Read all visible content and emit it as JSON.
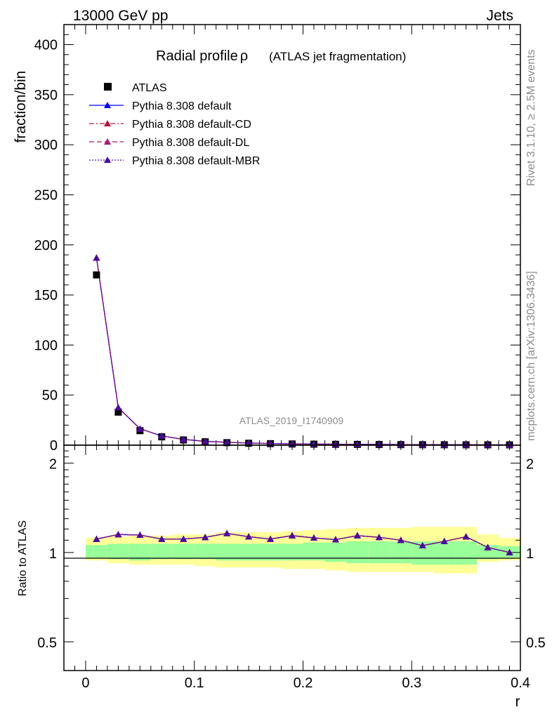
{
  "header": {
    "left": "13000 GeV pp",
    "right": "Jets"
  },
  "side": {
    "rivet": "Rivet 3.1.10, ≥ 2.5M events",
    "mcplots": "mcplots.cern.ch [arXiv:1306.3436]"
  },
  "watermark": "ATLAS_2019_I1740909",
  "chart_data": [
    {
      "type": "scatter",
      "title": "Radial profile",
      "title_symbol": "ρ",
      "subtitle": "(ATLAS jet fragmentation)",
      "ylabel": "fraction/bin",
      "xlim": [
        -0.02,
        0.4
      ],
      "ylim": [
        0,
        420
      ],
      "y_ticks": [
        0,
        50,
        100,
        150,
        200,
        250,
        300,
        350,
        400
      ],
      "x": [
        0.01,
        0.03,
        0.05,
        0.07,
        0.09,
        0.11,
        0.13,
        0.15,
        0.17,
        0.19,
        0.21,
        0.23,
        0.25,
        0.27,
        0.29,
        0.31,
        0.33,
        0.35,
        0.37,
        0.39
      ],
      "series": [
        {
          "name": "ATLAS",
          "color": "#000000",
          "marker": "square",
          "values": [
            170,
            33,
            14.5,
            8.3,
            5.2,
            3.4,
            2.5,
            1.9,
            1.5,
            1.2,
            1.0,
            0.85,
            0.75,
            0.65,
            0.55,
            0.47,
            0.42,
            0.37,
            0.33,
            0.3
          ]
        },
        {
          "name": "Pythia 8.308 default",
          "color": "#0000ff",
          "marker": "triangle",
          "dash": "solid",
          "values": [
            187,
            37.5,
            16.4,
            9.2,
            5.8,
            3.8,
            2.9,
            2.15,
            1.68,
            1.37,
            1.12,
            0.95,
            0.86,
            0.74,
            0.62,
            0.52,
            0.47,
            0.43,
            0.35,
            0.3
          ]
        },
        {
          "name": "Pythia 8.308 default-CD",
          "color": "#b0143c",
          "marker": "triangle",
          "dash": "dashdot",
          "values": [
            187,
            37.5,
            16.4,
            9.2,
            5.8,
            3.8,
            2.9,
            2.15,
            1.68,
            1.37,
            1.12,
            0.95,
            0.86,
            0.74,
            0.62,
            0.52,
            0.47,
            0.43,
            0.35,
            0.3
          ]
        },
        {
          "name": "Pythia 8.308 default-DL",
          "color": "#b0146e",
          "marker": "triangle",
          "dash": "dashed",
          "values": [
            187,
            37.5,
            16.4,
            9.2,
            5.8,
            3.8,
            2.9,
            2.15,
            1.68,
            1.37,
            1.12,
            0.95,
            0.86,
            0.74,
            0.62,
            0.52,
            0.47,
            0.43,
            0.35,
            0.3
          ]
        },
        {
          "name": "Pythia 8.308 default-MBR",
          "color": "#4b0aa0",
          "marker": "triangle",
          "dash": "dotted",
          "values": [
            187,
            37.5,
            16.4,
            9.2,
            5.8,
            3.8,
            2.9,
            2.15,
            1.68,
            1.37,
            1.12,
            0.95,
            0.86,
            0.74,
            0.62,
            0.52,
            0.47,
            0.43,
            0.35,
            0.3
          ]
        }
      ]
    },
    {
      "type": "scatter",
      "ylabel": "Ratio to ATLAS",
      "xlabel": "r",
      "log_y": true,
      "xlim": [
        -0.02,
        0.4
      ],
      "ylim": [
        0.4,
        2.3
      ],
      "y_ticks": [
        0.5,
        1,
        2
      ],
      "x_ticks": [
        0,
        0.1,
        0.2,
        0.3,
        0.4
      ],
      "x": [
        0.01,
        0.03,
        0.05,
        0.07,
        0.09,
        0.11,
        0.13,
        0.15,
        0.17,
        0.19,
        0.21,
        0.23,
        0.25,
        0.27,
        0.29,
        0.31,
        0.33,
        0.35,
        0.37,
        0.39
      ],
      "band_inner": [
        [
          0.96,
          1.06
        ],
        [
          0.95,
          1.07
        ],
        [
          0.94,
          1.07
        ],
        [
          0.95,
          1.07
        ],
        [
          0.95,
          1.07
        ],
        [
          0.95,
          1.07
        ],
        [
          0.94,
          1.07
        ],
        [
          0.94,
          1.07
        ],
        [
          0.94,
          1.07
        ],
        [
          0.94,
          1.07
        ],
        [
          0.94,
          1.08
        ],
        [
          0.93,
          1.08
        ],
        [
          0.92,
          1.09
        ],
        [
          0.92,
          1.09
        ],
        [
          0.92,
          1.09
        ],
        [
          0.91,
          1.09
        ],
        [
          0.91,
          1.09
        ],
        [
          0.91,
          1.09
        ],
        [
          0.95,
          1.06
        ],
        [
          0.96,
          1.05
        ]
      ],
      "band_outer": [
        [
          0.94,
          1.12
        ],
        [
          0.92,
          1.13
        ],
        [
          0.91,
          1.14
        ],
        [
          0.91,
          1.14
        ],
        [
          0.91,
          1.15
        ],
        [
          0.9,
          1.15
        ],
        [
          0.89,
          1.17
        ],
        [
          0.89,
          1.17
        ],
        [
          0.89,
          1.17
        ],
        [
          0.88,
          1.18
        ],
        [
          0.88,
          1.19
        ],
        [
          0.87,
          1.2
        ],
        [
          0.86,
          1.21
        ],
        [
          0.86,
          1.21
        ],
        [
          0.86,
          1.21
        ],
        [
          0.86,
          1.22
        ],
        [
          0.85,
          1.22
        ],
        [
          0.85,
          1.22
        ],
        [
          0.93,
          1.15
        ],
        [
          0.94,
          1.12
        ]
      ],
      "series": [
        {
          "name": "Pythia 8.308 default",
          "color": "#0000ff",
          "values": [
            1.11,
            1.15,
            1.145,
            1.11,
            1.11,
            1.125,
            1.16,
            1.13,
            1.11,
            1.14,
            1.12,
            1.105,
            1.14,
            1.125,
            1.1,
            1.055,
            1.09,
            1.13,
            1.04,
            1.0
          ]
        },
        {
          "name": "Pythia 8.308 default-CD",
          "color": "#b0143c",
          "values": [
            1.11,
            1.15,
            1.145,
            1.11,
            1.11,
            1.125,
            1.16,
            1.13,
            1.11,
            1.14,
            1.12,
            1.105,
            1.14,
            1.125,
            1.1,
            1.055,
            1.09,
            1.13,
            1.04,
            1.0
          ]
        },
        {
          "name": "Pythia 8.308 default-DL",
          "color": "#b0146e",
          "values": [
            1.11,
            1.15,
            1.145,
            1.11,
            1.11,
            1.125,
            1.16,
            1.13,
            1.11,
            1.14,
            1.12,
            1.105,
            1.14,
            1.125,
            1.1,
            1.055,
            1.09,
            1.13,
            1.04,
            1.0
          ]
        },
        {
          "name": "Pythia 8.308 default-MBR",
          "color": "#4b0aa0",
          "values": [
            1.11,
            1.15,
            1.145,
            1.11,
            1.11,
            1.125,
            1.16,
            1.13,
            1.11,
            1.14,
            1.12,
            1.105,
            1.14,
            1.125,
            1.1,
            1.055,
            1.09,
            1.13,
            1.04,
            1.0
          ]
        }
      ]
    }
  ]
}
